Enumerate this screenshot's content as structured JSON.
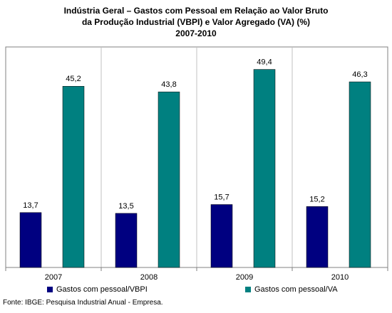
{
  "chart_data": {
    "type": "bar",
    "title_lines": [
      "Indústria Geral – Gastos com Pessoal em Relação ao Valor Bruto",
      "da Produção Industrial (VBPI) e Valor Agregado (VA) (%)",
      "2007-2010"
    ],
    "categories": [
      "2007",
      "2008",
      "2009",
      "2010"
    ],
    "series": [
      {
        "name": "Gastos com pessoal/VBPI",
        "color": "#000080",
        "values": [
          13.7,
          13.5,
          15.7,
          15.2
        ],
        "labels": [
          "13,7",
          "13,5",
          "15,7",
          "15,2"
        ]
      },
      {
        "name": "Gastos com pessoal/VA",
        "color": "#008080",
        "values": [
          45.2,
          43.8,
          49.4,
          46.3
        ],
        "labels": [
          "45,2",
          "43,8",
          "49,4",
          "46,3"
        ]
      }
    ],
    "ylim": [
      0,
      55
    ],
    "grid": false,
    "legend_position": "bottom",
    "source": "Fonte: IBGE: Pesquisa Industrial Anual - Empresa."
  }
}
